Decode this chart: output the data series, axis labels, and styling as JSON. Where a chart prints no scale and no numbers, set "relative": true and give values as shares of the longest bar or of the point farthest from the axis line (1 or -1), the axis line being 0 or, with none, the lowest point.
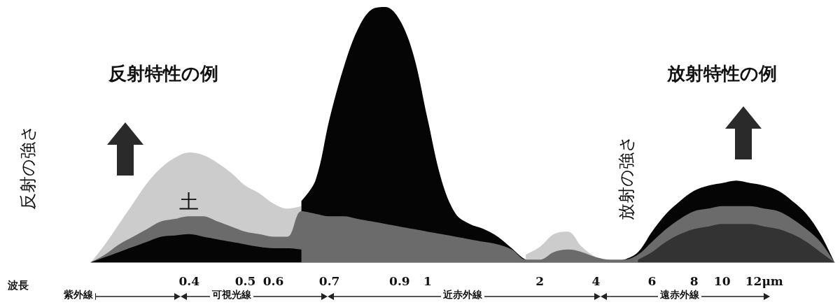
{
  "chart_data": {
    "type": "area",
    "relative": true,
    "ylabel": "反射の強さ",
    "y2label": "放射の強さ",
    "annotations": [
      "反射特性の例",
      "放射特性の例",
      "紫外線",
      "可視光線",
      "近赤外線",
      "遠赤外線",
      "波長"
    ],
    "categories": [
      null,
      null,
      null,
      null,
      null,
      null,
      null,
      "0.4",
      null,
      null,
      null,
      "0.5",
      null,
      "0.6",
      null,
      null,
      null,
      "0.7",
      null,
      null,
      null,
      null,
      "0.9",
      null,
      "1",
      null,
      null,
      null,
      null,
      null,
      null,
      null,
      "2",
      null,
      null,
      null,
      "4",
      null,
      null,
      null,
      "6",
      null,
      null,
      "8",
      null,
      "10",
      null,
      null,
      "12μm",
      null,
      null,
      null,
      null,
      null
    ],
    "series": [
      {
        "name": "土",
        "color": "#cccccc",
        "values": [
          0,
          0.07,
          0.15,
          0.23,
          0.31,
          0.37,
          0.41,
          0.43,
          0.42,
          0.39,
          0.35,
          0.3,
          0.27,
          0.23,
          0.21,
          0.22,
          null,
          null,
          null,
          null,
          null,
          null,
          null,
          null,
          null,
          null,
          null,
          null,
          null,
          null,
          null,
          0.03,
          0.06,
          0.11,
          0.12,
          0.06,
          0.02,
          0,
          null,
          null,
          null,
          null,
          null,
          null,
          null,
          null,
          null,
          null,
          null,
          null,
          null,
          null,
          null,
          null
        ]
      },
      {
        "color": "#050505",
        "values": [
          null,
          null,
          null,
          null,
          null,
          null,
          null,
          null,
          null,
          null,
          null,
          null,
          null,
          null,
          null,
          0.24,
          0.32,
          0.56,
          0.76,
          0.91,
          0.99,
          1,
          0.95,
          0.81,
          0.56,
          0.32,
          0.19,
          0.15,
          0.13,
          0.1,
          0.055,
          0.01,
          0,
          0,
          0,
          0,
          0,
          0,
          0.01,
          0.04,
          0.12,
          0.19,
          0.24,
          0.28,
          0.3,
          0.31,
          0.32,
          0.31,
          0.3,
          0.28,
          0.24,
          0.19,
          0.11,
          0
        ]
      },
      {
        "color": "#6b6b6b",
        "values": [
          0,
          0.03,
          0.07,
          0.1,
          0.13,
          0.16,
          0.17,
          0.18,
          0.18,
          0.16,
          0.14,
          0.12,
          0.11,
          0.1,
          0.1,
          0.2,
          0.19,
          0.18,
          0.18,
          0.17,
          0.16,
          0.15,
          0.14,
          0.13,
          0.12,
          0.11,
          0.1,
          0.09,
          0.08,
          0.07,
          0.05,
          0.01,
          0.01,
          0.04,
          0.05,
          0.04,
          0.02,
          0.01,
          0.01,
          0.03,
          0.08,
          0.13,
          0.17,
          0.2,
          0.21,
          0.22,
          0.22,
          0.22,
          0.21,
          0.2,
          0.17,
          0.13,
          0.08,
          0
        ]
      },
      {
        "color": "#050505",
        "values": [
          0,
          0.02,
          0.04,
          0.06,
          0.08,
          0.1,
          0.105,
          0.11,
          0.1,
          0.09,
          0.08,
          0.07,
          0.06,
          0.055,
          0.055,
          0.05,
          null,
          null,
          null,
          null,
          null,
          null,
          null,
          null,
          null,
          null,
          null,
          null,
          null,
          null,
          null,
          null,
          null,
          null,
          null,
          null,
          null,
          null,
          null,
          null,
          null,
          null,
          null,
          null,
          null,
          null,
          null,
          null,
          null,
          null,
          null,
          null,
          null,
          null
        ]
      },
      {
        "color": "#333333",
        "values": [
          null,
          null,
          null,
          null,
          null,
          null,
          null,
          null,
          null,
          null,
          null,
          null,
          null,
          null,
          null,
          null,
          null,
          null,
          null,
          null,
          null,
          null,
          null,
          null,
          null,
          null,
          null,
          null,
          null,
          null,
          null,
          null,
          null,
          null,
          null,
          null,
          null,
          null,
          null,
          0.01,
          0.04,
          0.08,
          0.11,
          0.13,
          0.14,
          0.15,
          0.15,
          0.15,
          0.14,
          0.13,
          0.11,
          0.08,
          0.04,
          0
        ]
      }
    ]
  }
}
